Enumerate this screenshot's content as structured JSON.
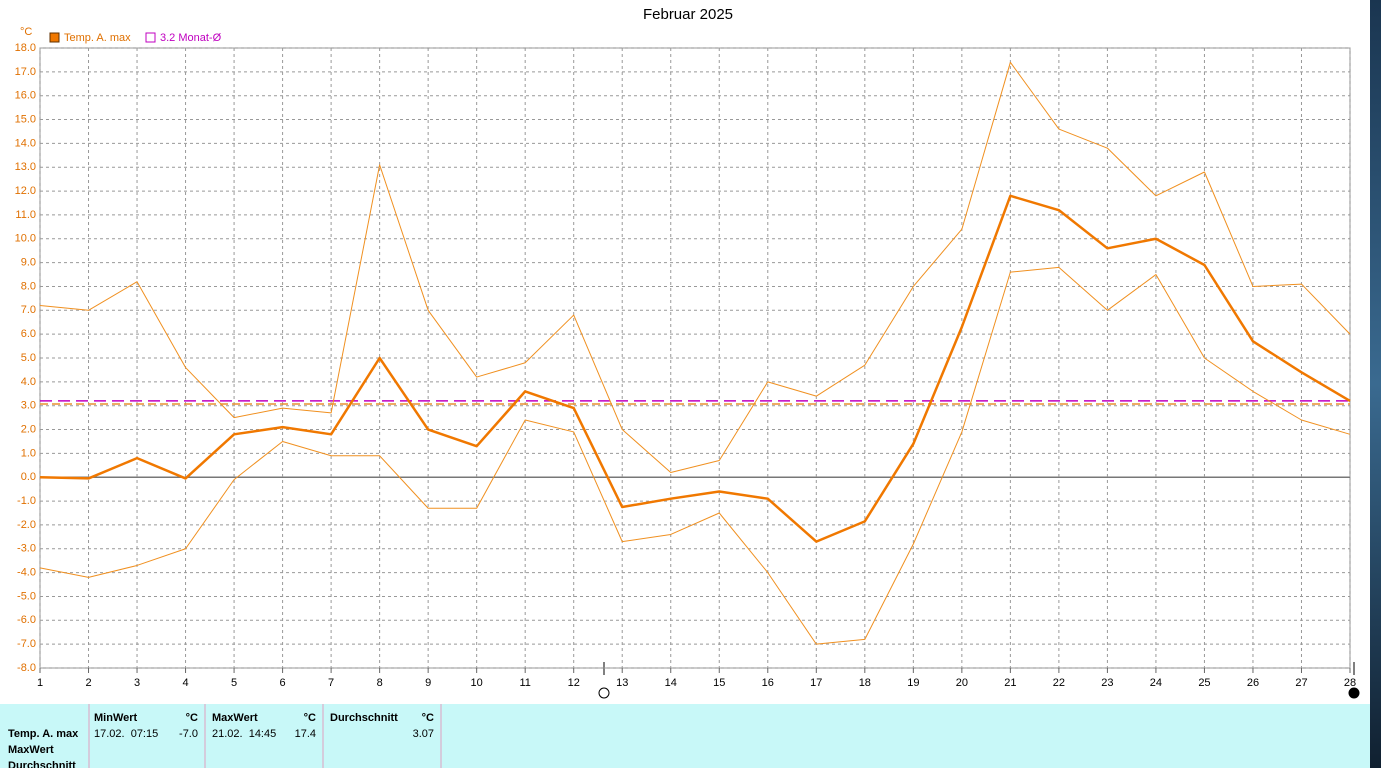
{
  "chart_data": {
    "type": "line",
    "title": "Februar 2025",
    "y_label": "°C",
    "x": [
      1,
      2,
      3,
      4,
      5,
      6,
      7,
      8,
      9,
      10,
      11,
      12,
      13,
      14,
      15,
      16,
      17,
      18,
      19,
      20,
      21,
      22,
      23,
      24,
      25,
      26,
      27,
      28
    ],
    "xlim": [
      1,
      28
    ],
    "xticks": [
      1,
      2,
      3,
      4,
      5,
      6,
      7,
      8,
      9,
      10,
      11,
      12,
      13,
      14,
      15,
      16,
      17,
      18,
      19,
      20,
      21,
      22,
      23,
      24,
      25,
      26,
      27,
      28
    ],
    "ylim": [
      -8,
      18
    ],
    "yticks": [
      {
        "value": 18,
        "label": "18.0"
      },
      {
        "value": 17,
        "label": "17.0"
      },
      {
        "value": 16,
        "label": "16.0"
      },
      {
        "value": 15,
        "label": "15.0"
      },
      {
        "value": 14,
        "label": "14.0"
      },
      {
        "value": 13,
        "label": "13.0"
      },
      {
        "value": 12,
        "label": "12.0"
      },
      {
        "value": 11,
        "label": "11.0"
      },
      {
        "value": 10,
        "label": "10.0"
      },
      {
        "value": 9,
        "label": "9.0"
      },
      {
        "value": 8,
        "label": "8.0"
      },
      {
        "value": 7,
        "label": "7.0"
      },
      {
        "value": 6,
        "label": "6.0"
      },
      {
        "value": 5,
        "label": "5.0"
      },
      {
        "value": 4,
        "label": "4.0"
      },
      {
        "value": 3,
        "label": "3.0"
      },
      {
        "value": 2,
        "label": "2.0"
      },
      {
        "value": 1,
        "label": "1.0"
      },
      {
        "value": 0,
        "label": "0.0"
      },
      {
        "value": -1,
        "label": "-1.0"
      },
      {
        "value": -2,
        "label": "-2.0"
      },
      {
        "value": -3,
        "label": "-3.0"
      },
      {
        "value": -4,
        "label": "-4.0"
      },
      {
        "value": -5,
        "label": "-5.0"
      },
      {
        "value": -6,
        "label": "-6.0"
      },
      {
        "value": -7,
        "label": "-7.0"
      },
      {
        "value": -8,
        "label": "-8.0"
      }
    ],
    "grid": true,
    "series": [
      {
        "name": "Temp. A. max",
        "color": "#f07800",
        "width": 2.5,
        "values": [
          0.0,
          -0.05,
          0.8,
          -0.05,
          1.8,
          2.1,
          1.8,
          5.0,
          2.0,
          1.3,
          3.6,
          2.9,
          -1.25,
          -0.9,
          -0.6,
          -0.9,
          -2.7,
          -1.85,
          1.4,
          6.3,
          11.8,
          11.2,
          9.6,
          10.0,
          8.9,
          5.7,
          4.4,
          3.2
        ]
      },
      {
        "color": "#f09020",
        "width": 1,
        "values": [
          7.2,
          7.0,
          8.2,
          4.6,
          2.5,
          2.9,
          2.7,
          13.1,
          7.0,
          4.2,
          4.8,
          6.8,
          2.0,
          0.2,
          0.7,
          4.0,
          3.4,
          4.7,
          8.0,
          10.4,
          17.4,
          14.6,
          13.8,
          11.8,
          12.8,
          8.0,
          8.1,
          6.0
        ]
      },
      {
        "color": "#f09020",
        "width": 1,
        "values": [
          -3.8,
          -4.2,
          -3.7,
          -3.0,
          -0.1,
          1.5,
          0.9,
          0.9,
          -1.3,
          -1.3,
          2.4,
          1.9,
          -2.7,
          -2.4,
          -1.5,
          -4.0,
          -7.0,
          -6.8,
          -2.8,
          1.9,
          8.6,
          8.8,
          7.0,
          8.5,
          5.0,
          3.6,
          2.4,
          1.8
        ]
      }
    ],
    "average_line": {
      "value": 3.07,
      "color": "#e89030"
    },
    "monthly_average": {
      "value": 3.2,
      "label": "3.2 Monat-Ø",
      "color": "#c000c0"
    }
  },
  "table": {
    "row_labels": [
      "Temp. A. max",
      "MaxWert",
      "Durchschnitt"
    ],
    "headers": [
      [
        "MinWert",
        "°C"
      ],
      [
        "MaxWert",
        "°C"
      ],
      [
        "Durchschnitt",
        "°C"
      ]
    ],
    "rows": [
      [
        "17.02.  07:15",
        "-7.0",
        "21.02.  14:45",
        "17.4",
        "3.07"
      ]
    ]
  }
}
